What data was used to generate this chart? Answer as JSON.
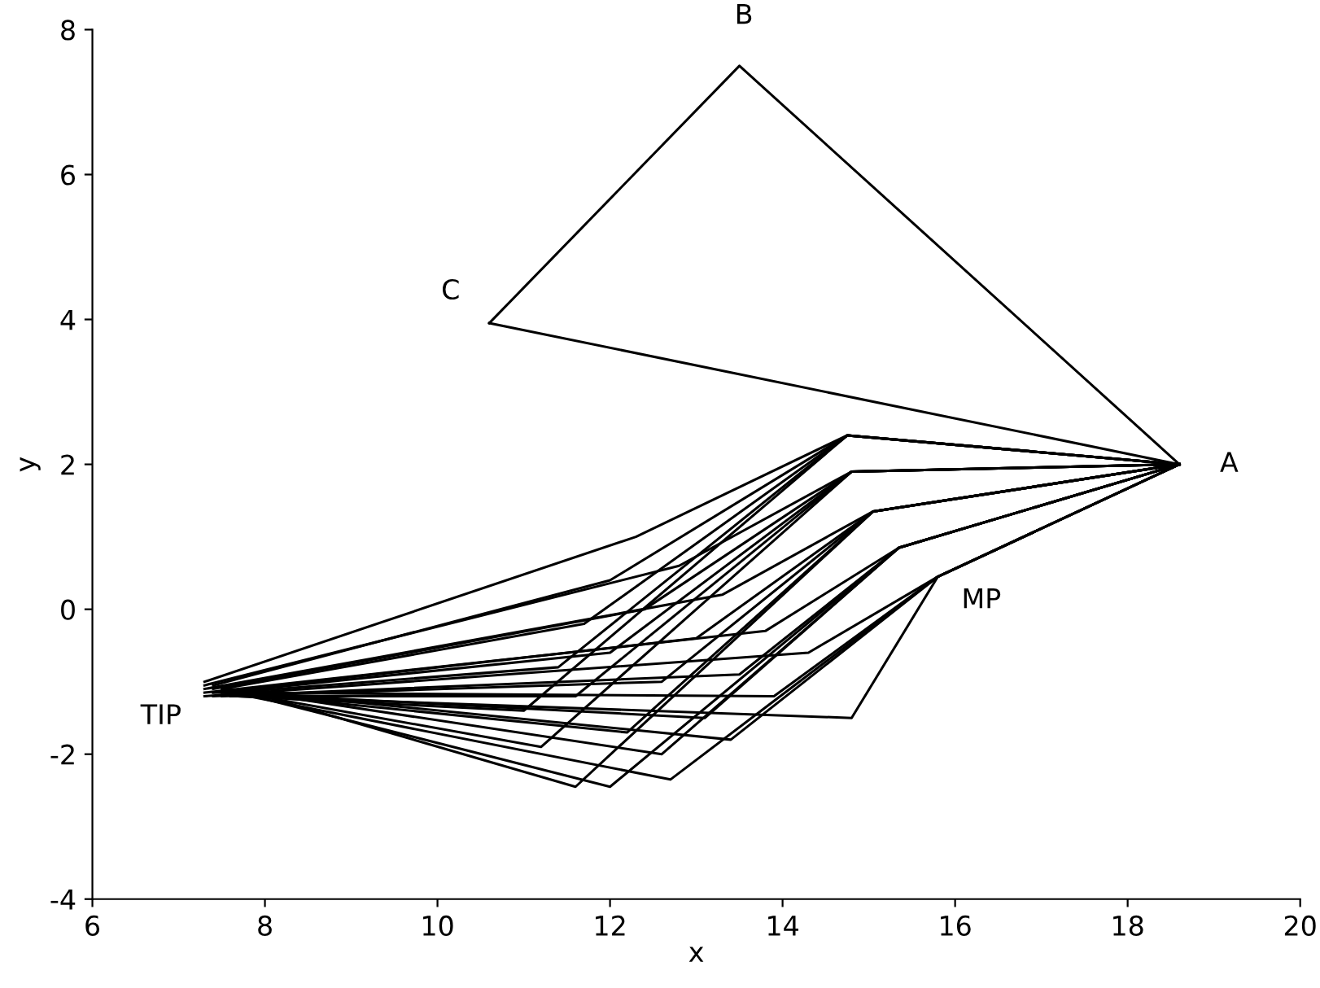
{
  "chart_data": {
    "type": "line",
    "xlabel": "x",
    "ylabel": "y",
    "xlim": [
      6,
      20
    ],
    "ylim": [
      -4,
      8
    ],
    "xticks": [
      6,
      8,
      10,
      12,
      14,
      16,
      18,
      20
    ],
    "yticks": [
      -4,
      -2,
      0,
      2,
      4,
      6,
      8
    ],
    "grid": false,
    "legend": false,
    "marker": "none",
    "line_style": "solid",
    "annotations": [
      {
        "text": "A",
        "x": 18.6,
        "y": 2.0
      },
      {
        "text": "B",
        "x": 13.5,
        "y": 7.5
      },
      {
        "text": "C",
        "x": 10.6,
        "y": 3.95
      },
      {
        "text": "MP",
        "x": 15.8,
        "y": 0.45
      },
      {
        "text": "TIP",
        "x": 7.3,
        "y": -1.15
      }
    ],
    "series": [
      {
        "color": "#000000",
        "x": [
          10.6,
          13.5,
          18.6
        ],
        "values": [
          3.95,
          7.5,
          2.0
        ]
      },
      {
        "color": "#000000",
        "x": [
          10.6,
          18.6
        ],
        "values": [
          3.95,
          2.0
        ]
      },
      {
        "color": "#000000",
        "x": [
          7.3,
          12.3,
          14.75,
          18.6
        ],
        "values": [
          -1.0,
          1.0,
          2.4,
          2.0
        ]
      },
      {
        "color": "#000000",
        "x": [
          7.4,
          12.0,
          14.75,
          18.6
        ],
        "values": [
          -1.05,
          0.4,
          2.4,
          2.0
        ]
      },
      {
        "color": "#000000",
        "x": [
          7.5,
          11.7,
          14.75,
          18.6
        ],
        "values": [
          -1.1,
          -0.2,
          2.4,
          2.0
        ]
      },
      {
        "color": "#000000",
        "x": [
          7.6,
          11.4,
          14.75,
          18.6
        ],
        "values": [
          -1.15,
          -0.8,
          2.4,
          2.0
        ]
      },
      {
        "color": "#000000",
        "x": [
          7.7,
          11.0,
          14.75,
          18.6
        ],
        "values": [
          -1.2,
          -1.4,
          2.4,
          2.0
        ]
      },
      {
        "color": "#000000",
        "x": [
          7.3,
          12.8,
          14.8,
          18.6
        ],
        "values": [
          -1.05,
          0.6,
          1.9,
          2.0
        ]
      },
      {
        "color": "#000000",
        "x": [
          7.4,
          12.4,
          14.8,
          18.6
        ],
        "values": [
          -1.1,
          0.0,
          1.9,
          2.0
        ]
      },
      {
        "color": "#000000",
        "x": [
          7.5,
          12.0,
          14.8,
          18.6
        ],
        "values": [
          -1.15,
          -0.6,
          1.9,
          2.0
        ]
      },
      {
        "color": "#000000",
        "x": [
          7.6,
          11.6,
          14.8,
          18.6
        ],
        "values": [
          -1.2,
          -1.2,
          1.9,
          2.0
        ]
      },
      {
        "color": "#000000",
        "x": [
          7.7,
          11.2,
          14.8,
          18.6
        ],
        "values": [
          -1.15,
          -1.9,
          1.9,
          2.0
        ]
      },
      {
        "color": "#000000",
        "x": [
          7.3,
          13.3,
          15.05,
          18.6
        ],
        "values": [
          -1.1,
          0.2,
          1.35,
          2.0
        ]
      },
      {
        "color": "#000000",
        "x": [
          7.4,
          13.0,
          15.05,
          18.6
        ],
        "values": [
          -1.15,
          -0.4,
          1.35,
          2.0
        ]
      },
      {
        "color": "#000000",
        "x": [
          7.5,
          12.6,
          15.05,
          18.6
        ],
        "values": [
          -1.2,
          -1.0,
          1.35,
          2.0
        ]
      },
      {
        "color": "#000000",
        "x": [
          7.6,
          12.2,
          15.05,
          18.6
        ],
        "values": [
          -1.15,
          -1.7,
          1.35,
          2.0
        ]
      },
      {
        "color": "#000000",
        "x": [
          7.7,
          11.6,
          15.05,
          18.6
        ],
        "values": [
          -1.1,
          -2.45,
          1.35,
          2.0
        ]
      },
      {
        "color": "#000000",
        "x": [
          7.3,
          13.8,
          15.35,
          18.6
        ],
        "values": [
          -1.15,
          -0.3,
          0.85,
          2.0
        ]
      },
      {
        "color": "#000000",
        "x": [
          7.4,
          13.5,
          15.35,
          18.6
        ],
        "values": [
          -1.2,
          -0.9,
          0.85,
          2.0
        ]
      },
      {
        "color": "#000000",
        "x": [
          7.5,
          13.1,
          15.35,
          18.6
        ],
        "values": [
          -1.15,
          -1.5,
          0.85,
          2.0
        ]
      },
      {
        "color": "#000000",
        "x": [
          7.6,
          12.6,
          15.35,
          18.6
        ],
        "values": [
          -1.1,
          -2.0,
          0.85,
          2.0
        ]
      },
      {
        "color": "#000000",
        "x": [
          7.7,
          12.0,
          15.35,
          18.6
        ],
        "values": [
          -1.15,
          -2.45,
          0.85,
          2.0
        ]
      },
      {
        "color": "#000000",
        "x": [
          7.3,
          14.3,
          15.8,
          18.6
        ],
        "values": [
          -1.2,
          -0.6,
          0.45,
          2.0
        ]
      },
      {
        "color": "#000000",
        "x": [
          7.4,
          13.9,
          15.8,
          18.6
        ],
        "values": [
          -1.15,
          -1.2,
          0.45,
          2.0
        ]
      },
      {
        "color": "#000000",
        "x": [
          7.5,
          13.4,
          15.8,
          18.6
        ],
        "values": [
          -1.1,
          -1.8,
          0.45,
          2.0
        ]
      },
      {
        "color": "#000000",
        "x": [
          7.6,
          12.7,
          15.8,
          18.6
        ],
        "values": [
          -1.15,
          -2.35,
          0.45,
          2.0
        ]
      },
      {
        "color": "#000000",
        "x": [
          7.7,
          14.8,
          15.8,
          18.6
        ],
        "values": [
          -1.2,
          -1.5,
          0.45,
          2.0
        ]
      }
    ]
  }
}
